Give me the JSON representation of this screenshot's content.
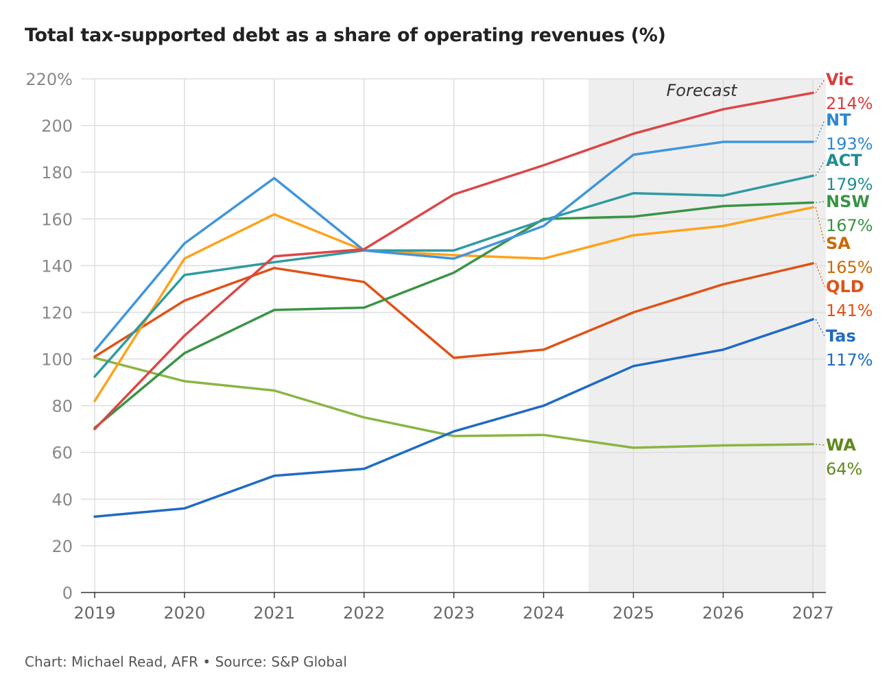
{
  "chart_data": {
    "type": "line",
    "title": "Total tax-supported debt as a share of operating revenues (%)",
    "source": "Chart: Michael Read, AFR • Source: S&P Global",
    "forecast_label": "Forecast",
    "forecast_start": 2024.5,
    "forecast_end": 2027.15,
    "x": [
      2019,
      2020,
      2021,
      2022,
      2023,
      2024,
      2025,
      2026,
      2027
    ],
    "ylim": [
      0,
      220
    ],
    "yticks": [
      0,
      20,
      40,
      60,
      80,
      100,
      120,
      140,
      160,
      180,
      200,
      220
    ],
    "ytick_labels": [
      "0",
      "20",
      "40",
      "60",
      "80",
      "100",
      "120",
      "140",
      "160",
      "180",
      "200",
      "220%"
    ],
    "grid": true,
    "series": [
      {
        "name": "WA",
        "end_label": "64%",
        "color": "#8ab543",
        "label_color": "#5e8a1c",
        "values": [
          100.5,
          90.5,
          86.5,
          75,
          67,
          67.5,
          62,
          63,
          63.5
        ]
      },
      {
        "name": "Tas",
        "end_label": "117%",
        "color": "#1f6bc4",
        "label_color": "#1f6bc4",
        "values": [
          32.5,
          36,
          50,
          53,
          69,
          80,
          97,
          104,
          117
        ]
      },
      {
        "name": "QLD",
        "end_label": "141%",
        "color": "#e05216",
        "label_color": "#e05216",
        "values": [
          101,
          125,
          139,
          133,
          100.5,
          104,
          120,
          132,
          141
        ]
      },
      {
        "name": "SA",
        "end_label": "165%",
        "color": "#ffa21a",
        "label_color": "#c96a06",
        "values": [
          82,
          143,
          162,
          146.5,
          144.5,
          143,
          153,
          157,
          165
        ]
      },
      {
        "name": "NSW",
        "end_label": "167%",
        "color": "#3a9445",
        "label_color": "#3a9445",
        "values": [
          70.5,
          102.5,
          121,
          122,
          137,
          160,
          161,
          165.5,
          167
        ]
      },
      {
        "name": "ACT",
        "end_label": "179%",
        "color": "#2f9aa2",
        "label_color": "#1f8d93",
        "values": [
          92.5,
          136,
          141.5,
          146.5,
          146.5,
          159.5,
          171,
          170,
          178.5
        ]
      },
      {
        "name": "NT",
        "end_label": "193%",
        "color": "#4095db",
        "label_color": "#2f86d1",
        "values": [
          103.5,
          149.5,
          177.5,
          146.5,
          143,
          157,
          187.5,
          193,
          193
        ]
      },
      {
        "name": "Vic",
        "end_label": "214%",
        "color": "#dc4646",
        "label_color": "#dc3c3c",
        "values": [
          70,
          110,
          144,
          147,
          170.5,
          183,
          196.5,
          207,
          214
        ]
      }
    ]
  }
}
